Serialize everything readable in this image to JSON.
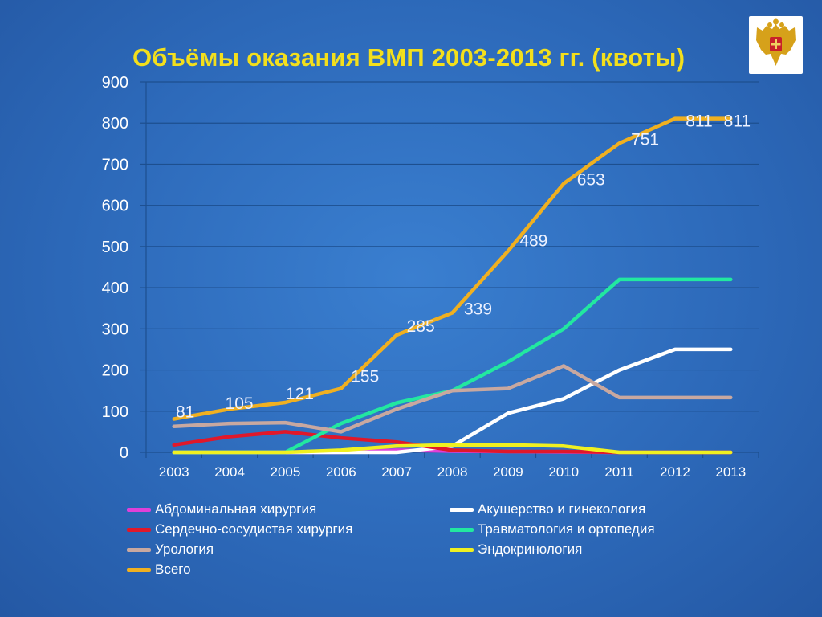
{
  "slide": {
    "title": "Объёмы оказания ВМП 2003-2013 гг. (квоты)",
    "emblem": "russian-coat-of-arms-emblem"
  },
  "colors": {
    "background": "#2f6fc0",
    "title": "#f3df1c",
    "axis_text": "#ffffff",
    "grid": "#1d4f8f"
  },
  "chart_data": {
    "type": "line",
    "title": "Объёмы оказания ВМП 2003-2013 гг. (квоты)",
    "xlabel": "",
    "ylabel": "",
    "ylim": [
      0,
      900
    ],
    "yticks": [
      "0",
      "100",
      "200",
      "300",
      "400",
      "500",
      "600",
      "700",
      "800",
      "900"
    ],
    "grid": true,
    "legend_placement": "bottom",
    "categories": [
      "2003",
      "2004",
      "2005",
      "2006",
      "2007",
      "2008",
      "2009",
      "2010",
      "2011",
      "2012",
      "2013"
    ],
    "series": [
      {
        "name": "Абдоминальная хирургия",
        "color": "#e040d8",
        "values": [
          0,
          0,
          0,
          0,
          5,
          3,
          2,
          1,
          0,
          0,
          0
        ]
      },
      {
        "name": "Акушерство и гинекология",
        "color": "#ffffff",
        "values": [
          0,
          0,
          0,
          0,
          0,
          15,
          95,
          130,
          200,
          250,
          250
        ]
      },
      {
        "name": "Сердечно-сосудистая хирургия",
        "color": "#e0182a",
        "values": [
          18,
          38,
          50,
          35,
          25,
          5,
          2,
          2,
          0,
          0,
          0
        ]
      },
      {
        "name": "Травматология и ортопедия",
        "color": "#22e8a0",
        "values": [
          0,
          0,
          0,
          70,
          120,
          150,
          220,
          300,
          420,
          420,
          420
        ]
      },
      {
        "name": "Урология",
        "color": "#c8a8a0",
        "values": [
          63,
          70,
          72,
          50,
          105,
          150,
          155,
          210,
          133,
          133,
          133
        ]
      },
      {
        "name": "Эндокринология",
        "color": "#f0f020",
        "values": [
          0,
          0,
          0,
          5,
          15,
          18,
          18,
          15,
          0,
          0,
          0
        ]
      },
      {
        "name": "Всего",
        "color": "#f0b020",
        "values": [
          81,
          105,
          121,
          155,
          285,
          339,
          489,
          653,
          751,
          811,
          811
        ],
        "labels": [
          "81",
          "105",
          "121",
          "155",
          "285",
          "339",
          "489",
          "653",
          "751",
          "811",
          "811"
        ]
      }
    ]
  }
}
